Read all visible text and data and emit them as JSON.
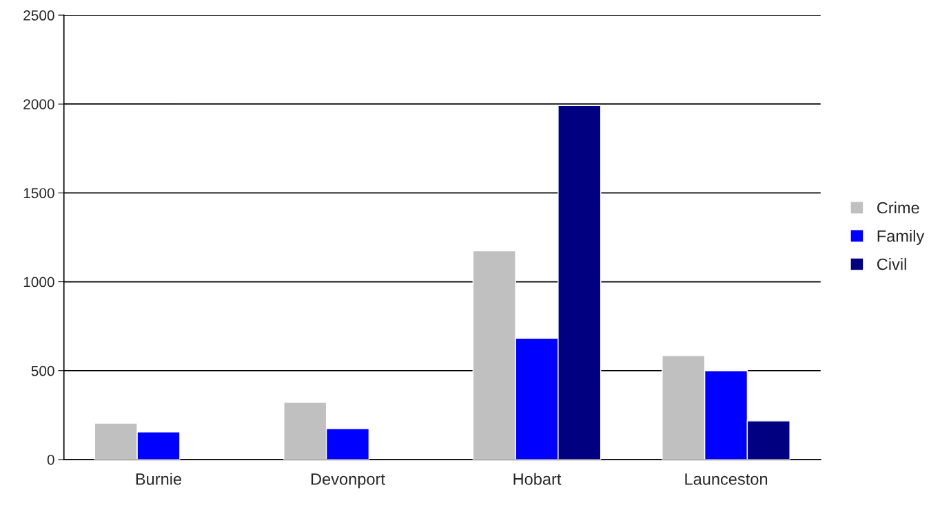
{
  "chart_data": {
    "type": "bar",
    "categories": [
      "Burnie",
      "Devonport",
      "Hobart",
      "Launceston"
    ],
    "series": [
      {
        "name": "Crime",
        "color": "#c0c0c0",
        "values": [
          205,
          322,
          1174,
          585
        ]
      },
      {
        "name": "Family",
        "color": "#0000ff",
        "values": [
          155,
          174,
          682,
          500
        ]
      },
      {
        "name": "Civil",
        "color": "#000080",
        "values": [
          null,
          null,
          1992,
          217
        ]
      }
    ],
    "ylim": [
      0,
      2500
    ],
    "yticks": [
      0,
      500,
      1000,
      1500,
      2000,
      2500
    ],
    "grid": "y",
    "legend": "right"
  }
}
